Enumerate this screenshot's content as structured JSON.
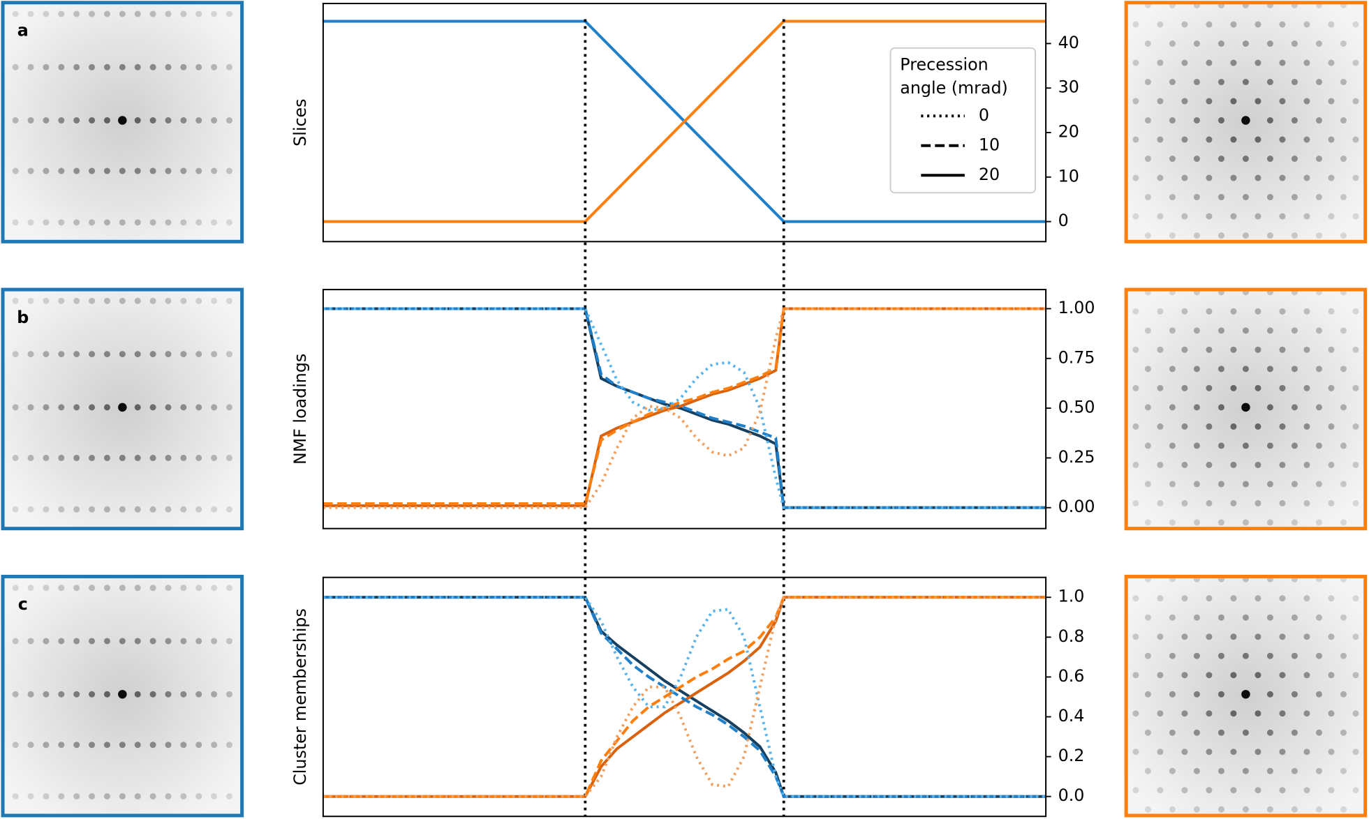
{
  "chart_data": [
    {
      "type": "line",
      "panel_label": "a",
      "ylabel": "Slices",
      "xlim": [
        0,
        91
      ],
      "ylim": [
        -4.5,
        49
      ],
      "yticks": [
        0,
        10,
        20,
        30,
        40
      ],
      "vlines": [
        33,
        58
      ],
      "legend": {
        "title": [
          "Precession",
          "angle (mrad)"
        ],
        "entries": [
          {
            "label": "0",
            "dash": "dotted"
          },
          {
            "label": "10",
            "dash": "dashed"
          },
          {
            "label": "20",
            "dash": "solid"
          }
        ]
      },
      "x": [
        0,
        33,
        58,
        91
      ],
      "series": [
        {
          "color": "#1f7fc9",
          "dash": "solid",
          "values": [
            45,
            45,
            0,
            0
          ]
        },
        {
          "color": "#ff7f0e",
          "dash": "solid",
          "values": [
            0,
            0,
            45,
            45
          ]
        }
      ]
    },
    {
      "type": "line",
      "panel_label": "b",
      "ylabel": "NMF loadings",
      "xlim": [
        0,
        91
      ],
      "ylim": [
        -0.105,
        1.096
      ],
      "yticks": [
        {
          "value": 0,
          "label": "0.00"
        },
        0.25,
        {
          "value": 0.5,
          "label": "0.50"
        },
        0.75,
        {
          "value": 1,
          "label": "1.00"
        }
      ],
      "x": [
        0,
        33,
        35,
        37,
        39,
        41,
        43,
        45,
        47,
        49,
        51,
        53,
        55,
        57,
        58,
        91
      ],
      "series": [
        {
          "color": "#173f5f",
          "dash": "solid",
          "values": [
            1,
            1,
            0.65,
            0.61,
            0.58,
            0.55,
            0.52,
            0.5,
            0.47,
            0.44,
            0.42,
            0.39,
            0.36,
            0.32,
            0,
            0
          ]
        },
        {
          "color": "#d9620f",
          "dash": "solid",
          "values": [
            0.01,
            0.01,
            0.36,
            0.4,
            0.43,
            0.46,
            0.49,
            0.51,
            0.54,
            0.57,
            0.59,
            0.62,
            0.65,
            0.69,
            1,
            1
          ]
        },
        {
          "color": "#1f7fc9",
          "dash": "dashed",
          "values": [
            1,
            1,
            0.67,
            0.61,
            0.58,
            0.55,
            0.53,
            0.51,
            0.48,
            0.45,
            0.43,
            0.41,
            0.38,
            0.35,
            0,
            0
          ]
        },
        {
          "color": "#ff7f0e",
          "dash": "dashed",
          "values": [
            0.02,
            0.02,
            0.34,
            0.39,
            0.43,
            0.47,
            0.5,
            0.53,
            0.55,
            0.58,
            0.6,
            0.63,
            0.66,
            0.7,
            1,
            1
          ]
        },
        {
          "color": "#5ab4ec",
          "dash": "dotted",
          "values": [
            1,
            1,
            0.82,
            0.64,
            0.53,
            0.49,
            0.5,
            0.55,
            0.65,
            0.72,
            0.73,
            0.68,
            0.5,
            0.15,
            0,
            0
          ]
        },
        {
          "color": "#f0a060",
          "dash": "dotted",
          "values": [
            0,
            0,
            0.12,
            0.3,
            0.45,
            0.51,
            0.5,
            0.45,
            0.35,
            0.28,
            0.26,
            0.3,
            0.48,
            0.85,
            1,
            1
          ]
        }
      ]
    },
    {
      "type": "line",
      "panel_label": "c",
      "ylabel": "Cluster memberships",
      "xlim": [
        0,
        91
      ],
      "ylim": [
        -0.1,
        1.1
      ],
      "yticks": [
        {
          "value": 0,
          "label": "0.0"
        },
        0.2,
        0.4,
        0.6,
        0.8,
        {
          "value": 1,
          "label": "1.0"
        }
      ],
      "x": [
        0,
        33,
        35,
        37,
        39,
        41,
        43,
        45,
        47,
        49,
        51,
        53,
        55,
        57,
        58,
        91
      ],
      "series": [
        {
          "color": "#173f5f",
          "dash": "solid",
          "values": [
            1,
            1,
            0.83,
            0.76,
            0.7,
            0.64,
            0.58,
            0.53,
            0.48,
            0.43,
            0.38,
            0.32,
            0.25,
            0.12,
            0,
            0
          ]
        },
        {
          "color": "#d9620f",
          "dash": "solid",
          "values": [
            0,
            0,
            0.15,
            0.24,
            0.3,
            0.36,
            0.42,
            0.47,
            0.52,
            0.57,
            0.62,
            0.68,
            0.75,
            0.88,
            1,
            1
          ]
        },
        {
          "color": "#1f7fc9",
          "dash": "dashed",
          "values": [
            1,
            1,
            0.82,
            0.74,
            0.66,
            0.6,
            0.55,
            0.5,
            0.45,
            0.41,
            0.36,
            0.3,
            0.23,
            0.1,
            0,
            0
          ]
        },
        {
          "color": "#ff7f0e",
          "dash": "dashed",
          "values": [
            0,
            0,
            0.18,
            0.28,
            0.38,
            0.45,
            0.5,
            0.55,
            0.6,
            0.64,
            0.69,
            0.73,
            0.8,
            0.9,
            1,
            1
          ]
        },
        {
          "color": "#5ab4ec",
          "dash": "dotted",
          "values": [
            1,
            1,
            0.88,
            0.7,
            0.55,
            0.45,
            0.45,
            0.6,
            0.8,
            0.93,
            0.94,
            0.8,
            0.45,
            0.1,
            0,
            0
          ]
        },
        {
          "color": "#f0a060",
          "dash": "dotted",
          "values": [
            0,
            0,
            0.1,
            0.3,
            0.45,
            0.55,
            0.55,
            0.4,
            0.2,
            0.06,
            0.05,
            0.2,
            0.55,
            0.9,
            1,
            1
          ]
        }
      ]
    }
  ]
}
